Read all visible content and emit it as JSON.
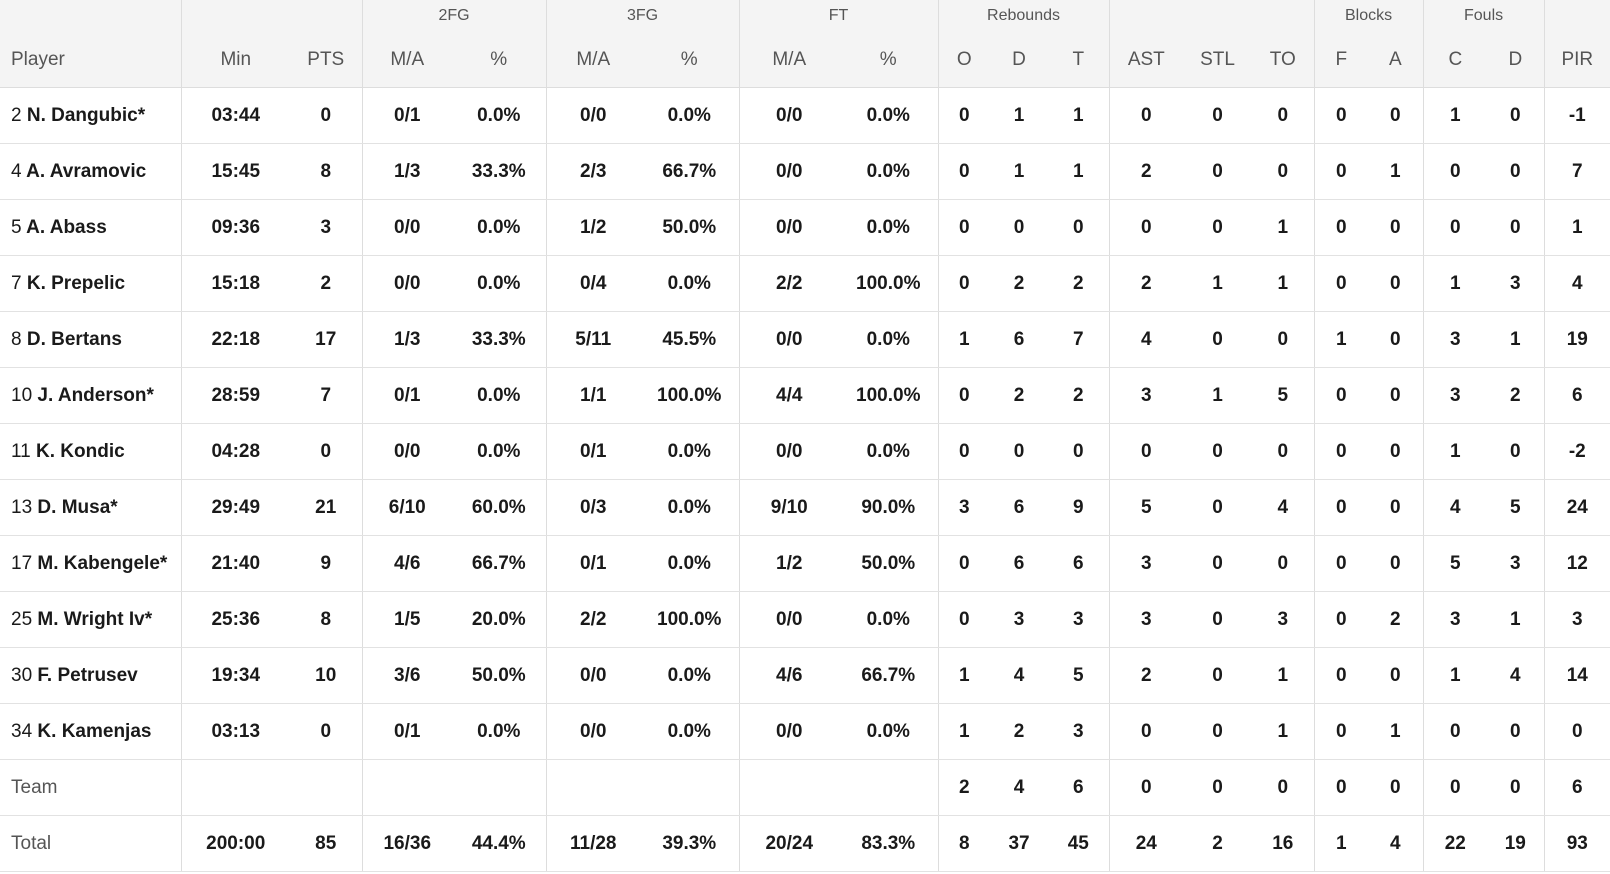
{
  "header": {
    "groups": {
      "fg2": "2FG",
      "fg3": "3FG",
      "ft": "FT",
      "rebounds": "Rebounds",
      "blocks": "Blocks",
      "fouls": "Fouls"
    },
    "columns": {
      "player": "Player",
      "min": "Min",
      "pts": "PTS",
      "fg2_ma": "M/A",
      "fg2_pct": "%",
      "fg3_ma": "M/A",
      "fg3_pct": "%",
      "ft_ma": "M/A",
      "ft_pct": "%",
      "reb_o": "O",
      "reb_d": "D",
      "reb_t": "T",
      "ast": "AST",
      "stl": "STL",
      "to": "TO",
      "blk_f": "F",
      "blk_a": "A",
      "foul_c": "C",
      "foul_d": "D",
      "pir": "PIR"
    }
  },
  "rows": [
    {
      "num": "2",
      "name": "N. Dangubic*",
      "min": "03:44",
      "pts": "0",
      "fg2_ma": "0/1",
      "fg2_pct": "0.0%",
      "fg3_ma": "0/0",
      "fg3_pct": "0.0%",
      "ft_ma": "0/0",
      "ft_pct": "0.0%",
      "reb_o": "0",
      "reb_d": "1",
      "reb_t": "1",
      "ast": "0",
      "stl": "0",
      "to": "0",
      "blk_f": "0",
      "blk_a": "0",
      "foul_c": "1",
      "foul_d": "0",
      "pir": "-1"
    },
    {
      "num": "4",
      "name": "A. Avramovic",
      "min": "15:45",
      "pts": "8",
      "fg2_ma": "1/3",
      "fg2_pct": "33.3%",
      "fg3_ma": "2/3",
      "fg3_pct": "66.7%",
      "ft_ma": "0/0",
      "ft_pct": "0.0%",
      "reb_o": "0",
      "reb_d": "1",
      "reb_t": "1",
      "ast": "2",
      "stl": "0",
      "to": "0",
      "blk_f": "0",
      "blk_a": "1",
      "foul_c": "0",
      "foul_d": "0",
      "pir": "7"
    },
    {
      "num": "5",
      "name": "A. Abass",
      "min": "09:36",
      "pts": "3",
      "fg2_ma": "0/0",
      "fg2_pct": "0.0%",
      "fg3_ma": "1/2",
      "fg3_pct": "50.0%",
      "ft_ma": "0/0",
      "ft_pct": "0.0%",
      "reb_o": "0",
      "reb_d": "0",
      "reb_t": "0",
      "ast": "0",
      "stl": "0",
      "to": "1",
      "blk_f": "0",
      "blk_a": "0",
      "foul_c": "0",
      "foul_d": "0",
      "pir": "1"
    },
    {
      "num": "7",
      "name": "K. Prepelic",
      "min": "15:18",
      "pts": "2",
      "fg2_ma": "0/0",
      "fg2_pct": "0.0%",
      "fg3_ma": "0/4",
      "fg3_pct": "0.0%",
      "ft_ma": "2/2",
      "ft_pct": "100.0%",
      "reb_o": "0",
      "reb_d": "2",
      "reb_t": "2",
      "ast": "2",
      "stl": "1",
      "to": "1",
      "blk_f": "0",
      "blk_a": "0",
      "foul_c": "1",
      "foul_d": "3",
      "pir": "4"
    },
    {
      "num": "8",
      "name": "D. Bertans",
      "min": "22:18",
      "pts": "17",
      "fg2_ma": "1/3",
      "fg2_pct": "33.3%",
      "fg3_ma": "5/11",
      "fg3_pct": "45.5%",
      "ft_ma": "0/0",
      "ft_pct": "0.0%",
      "reb_o": "1",
      "reb_d": "6",
      "reb_t": "7",
      "ast": "4",
      "stl": "0",
      "to": "0",
      "blk_f": "1",
      "blk_a": "0",
      "foul_c": "3",
      "foul_d": "1",
      "pir": "19"
    },
    {
      "num": "10",
      "name": "J. Anderson*",
      "min": "28:59",
      "pts": "7",
      "fg2_ma": "0/1",
      "fg2_pct": "0.0%",
      "fg3_ma": "1/1",
      "fg3_pct": "100.0%",
      "ft_ma": "4/4",
      "ft_pct": "100.0%",
      "reb_o": "0",
      "reb_d": "2",
      "reb_t": "2",
      "ast": "3",
      "stl": "1",
      "to": "5",
      "blk_f": "0",
      "blk_a": "0",
      "foul_c": "3",
      "foul_d": "2",
      "pir": "6"
    },
    {
      "num": "11",
      "name": "K. Kondic",
      "min": "04:28",
      "pts": "0",
      "fg2_ma": "0/0",
      "fg2_pct": "0.0%",
      "fg3_ma": "0/1",
      "fg3_pct": "0.0%",
      "ft_ma": "0/0",
      "ft_pct": "0.0%",
      "reb_o": "0",
      "reb_d": "0",
      "reb_t": "0",
      "ast": "0",
      "stl": "0",
      "to": "0",
      "blk_f": "0",
      "blk_a": "0",
      "foul_c": "1",
      "foul_d": "0",
      "pir": "-2"
    },
    {
      "num": "13",
      "name": "D. Musa*",
      "min": "29:49",
      "pts": "21",
      "fg2_ma": "6/10",
      "fg2_pct": "60.0%",
      "fg3_ma": "0/3",
      "fg3_pct": "0.0%",
      "ft_ma": "9/10",
      "ft_pct": "90.0%",
      "reb_o": "3",
      "reb_d": "6",
      "reb_t": "9",
      "ast": "5",
      "stl": "0",
      "to": "4",
      "blk_f": "0",
      "blk_a": "0",
      "foul_c": "4",
      "foul_d": "5",
      "pir": "24"
    },
    {
      "num": "17",
      "name": "M. Kabengele*",
      "min": "21:40",
      "pts": "9",
      "fg2_ma": "4/6",
      "fg2_pct": "66.7%",
      "fg3_ma": "0/1",
      "fg3_pct": "0.0%",
      "ft_ma": "1/2",
      "ft_pct": "50.0%",
      "reb_o": "0",
      "reb_d": "6",
      "reb_t": "6",
      "ast": "3",
      "stl": "0",
      "to": "0",
      "blk_f": "0",
      "blk_a": "0",
      "foul_c": "5",
      "foul_d": "3",
      "pir": "12"
    },
    {
      "num": "25",
      "name": "M. Wright Iv*",
      "min": "25:36",
      "pts": "8",
      "fg2_ma": "1/5",
      "fg2_pct": "20.0%",
      "fg3_ma": "2/2",
      "fg3_pct": "100.0%",
      "ft_ma": "0/0",
      "ft_pct": "0.0%",
      "reb_o": "0",
      "reb_d": "3",
      "reb_t": "3",
      "ast": "3",
      "stl": "0",
      "to": "3",
      "blk_f": "0",
      "blk_a": "2",
      "foul_c": "3",
      "foul_d": "1",
      "pir": "3"
    },
    {
      "num": "30",
      "name": "F. Petrusev",
      "min": "19:34",
      "pts": "10",
      "fg2_ma": "3/6",
      "fg2_pct": "50.0%",
      "fg3_ma": "0/0",
      "fg3_pct": "0.0%",
      "ft_ma": "4/6",
      "ft_pct": "66.7%",
      "reb_o": "1",
      "reb_d": "4",
      "reb_t": "5",
      "ast": "2",
      "stl": "0",
      "to": "1",
      "blk_f": "0",
      "blk_a": "0",
      "foul_c": "1",
      "foul_d": "4",
      "pir": "14"
    },
    {
      "num": "34",
      "name": "K. Kamenjas",
      "min": "03:13",
      "pts": "0",
      "fg2_ma": "0/1",
      "fg2_pct": "0.0%",
      "fg3_ma": "0/0",
      "fg3_pct": "0.0%",
      "ft_ma": "0/0",
      "ft_pct": "0.0%",
      "reb_o": "1",
      "reb_d": "2",
      "reb_t": "3",
      "ast": "0",
      "stl": "0",
      "to": "1",
      "blk_f": "0",
      "blk_a": "1",
      "foul_c": "0",
      "foul_d": "0",
      "pir": "0"
    }
  ],
  "team": {
    "label": "Team",
    "reb_o": "2",
    "reb_d": "4",
    "reb_t": "6",
    "ast": "0",
    "stl": "0",
    "to": "0",
    "blk_f": "0",
    "blk_a": "0",
    "foul_c": "0",
    "foul_d": "0",
    "pir": "6"
  },
  "total": {
    "label": "Total",
    "min": "200:00",
    "pts": "85",
    "fg2_ma": "16/36",
    "fg2_pct": "44.4%",
    "fg3_ma": "11/28",
    "fg3_pct": "39.3%",
    "ft_ma": "20/24",
    "ft_pct": "83.3%",
    "reb_o": "8",
    "reb_d": "37",
    "reb_t": "45",
    "ast": "24",
    "stl": "2",
    "to": "16",
    "blk_f": "1",
    "blk_a": "4",
    "foul_c": "22",
    "foul_d": "19",
    "pir": "93"
  }
}
